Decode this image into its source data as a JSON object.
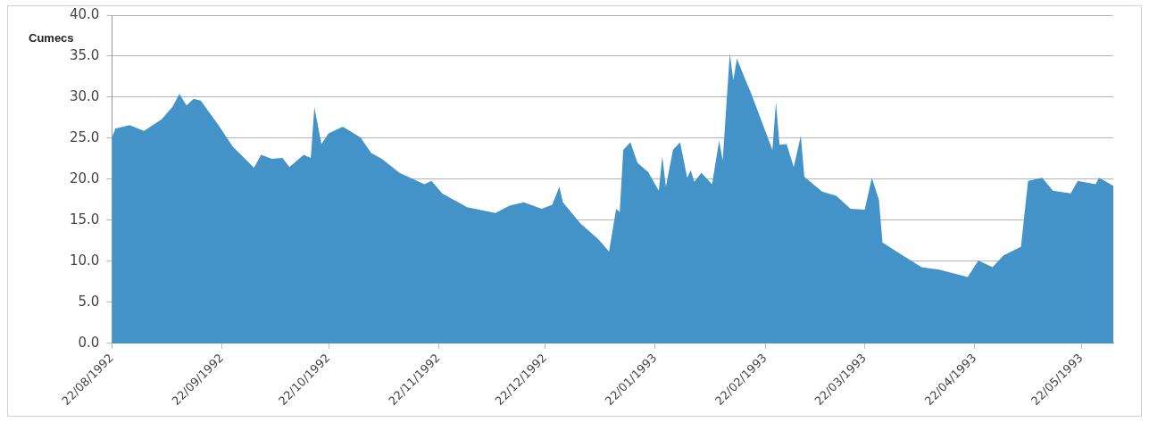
{
  "chart_data": {
    "type": "area",
    "ylabel": "Cumecs",
    "x": [
      "1992-08-22",
      "1992-08-23",
      "1992-08-27",
      "1992-08-31",
      "1992-09-05",
      "1992-09-08",
      "1992-09-10",
      "1992-09-12",
      "1992-09-14",
      "1992-09-16",
      "1992-09-21",
      "1992-09-25",
      "1992-10-01",
      "1992-10-03",
      "1992-10-06",
      "1992-10-09",
      "1992-10-11",
      "1992-10-15",
      "1992-10-17",
      "1992-10-18",
      "1992-10-20",
      "1992-10-22",
      "1992-10-26",
      "1992-10-31",
      "1992-11-03",
      "1992-11-06",
      "1992-11-11",
      "1992-11-18",
      "1992-11-20",
      "1992-11-23",
      "1992-11-30",
      "1992-12-08",
      "1992-12-12",
      "1992-12-16",
      "1992-12-21",
      "1992-12-24",
      "1992-12-26",
      "1992-12-27",
      "1993-01-01",
      "1993-01-06",
      "1993-01-09",
      "1993-01-11",
      "1993-01-12",
      "1993-01-13",
      "1993-01-15",
      "1993-01-17",
      "1993-01-20",
      "1993-01-23",
      "1993-01-24",
      "1993-01-25",
      "1993-01-27",
      "1993-01-29",
      "1993-01-31",
      "1993-02-01",
      "1993-02-02",
      "1993-02-04",
      "1993-02-07",
      "1993-02-09",
      "1993-02-10",
      "1993-02-12",
      "1993-02-13",
      "1993-02-14",
      "1993-02-17",
      "1993-02-18",
      "1993-02-24",
      "1993-02-25",
      "1993-02-26",
      "1993-02-28",
      "1993-03-02",
      "1993-03-04",
      "1993-03-05",
      "1993-03-10",
      "1993-03-14",
      "1993-03-18",
      "1993-03-22",
      "1993-03-24",
      "1993-03-26",
      "1993-03-27",
      "1993-03-31",
      "1993-04-07",
      "1993-04-12",
      "1993-04-20",
      "1993-04-23",
      "1993-04-27",
      "1993-04-30",
      "1993-05-05",
      "1993-05-07",
      "1993-05-11",
      "1993-05-14",
      "1993-05-19",
      "1993-05-21",
      "1993-05-26",
      "1993-05-27",
      "1993-05-31"
    ],
    "series": [
      {
        "color": "#4393c9",
        "values": [
          25.1,
          26.2,
          26.6,
          25.9,
          27.3,
          28.8,
          30.4,
          29.0,
          29.8,
          29.6,
          26.6,
          24.0,
          21.4,
          23.0,
          22.5,
          22.6,
          21.5,
          23.0,
          22.6,
          28.8,
          24.3,
          25.6,
          26.4,
          25.1,
          23.2,
          22.5,
          20.8,
          19.4,
          19.8,
          18.3,
          16.6,
          15.9,
          16.8,
          17.2,
          16.4,
          16.9,
          19.1,
          17.2,
          14.6,
          12.7,
          11.2,
          16.4,
          16.0,
          23.6,
          24.5,
          22.0,
          20.9,
          18.6,
          22.8,
          19.1,
          23.6,
          24.5,
          20.2,
          21.1,
          19.7,
          20.8,
          19.4,
          24.7,
          22.3,
          35.3,
          32.1,
          34.7,
          31.5,
          30.5,
          23.6,
          29.4,
          24.2,
          24.3,
          21.5,
          25.3,
          20.3,
          18.5,
          18.0,
          16.4,
          16.3,
          20.2,
          17.5,
          12.3,
          11.2,
          9.3,
          9.0,
          8.1,
          10.1,
          9.3,
          10.7,
          11.8,
          19.8,
          20.2,
          18.6,
          18.3,
          19.8,
          19.4,
          20.2,
          19.2
        ]
      }
    ],
    "xlim": [
      "1992-08-22",
      "1993-05-31"
    ],
    "xticks": [
      {
        "value": "1992-08-22",
        "label": "22/08/1992"
      },
      {
        "value": "1992-09-22",
        "label": "22/09/1992"
      },
      {
        "value": "1992-10-22",
        "label": "22/10/1992"
      },
      {
        "value": "1992-11-22",
        "label": "22/11/1992"
      },
      {
        "value": "1992-12-22",
        "label": "22/12/1992"
      },
      {
        "value": "1993-01-22",
        "label": "22/01/1993"
      },
      {
        "value": "1993-02-22",
        "label": "22/02/1993"
      },
      {
        "value": "1993-03-22",
        "label": "22/03/1993"
      },
      {
        "value": "1993-04-22",
        "label": "22/04/1993"
      },
      {
        "value": "1993-05-22",
        "label": "22/05/1993"
      }
    ],
    "ylim": [
      0,
      40
    ],
    "yticks": [
      {
        "value": 0,
        "label": "0.0"
      },
      {
        "value": 5,
        "label": "5.0"
      },
      {
        "value": 10,
        "label": "10.0"
      },
      {
        "value": 15,
        "label": "15.0"
      },
      {
        "value": 20,
        "label": "20.0"
      },
      {
        "value": 25,
        "label": "25.0"
      },
      {
        "value": 30,
        "label": "30.0"
      },
      {
        "value": 35,
        "label": "35.0"
      },
      {
        "value": 40,
        "label": "40.0"
      }
    ],
    "grid": "y",
    "legend": false
  }
}
